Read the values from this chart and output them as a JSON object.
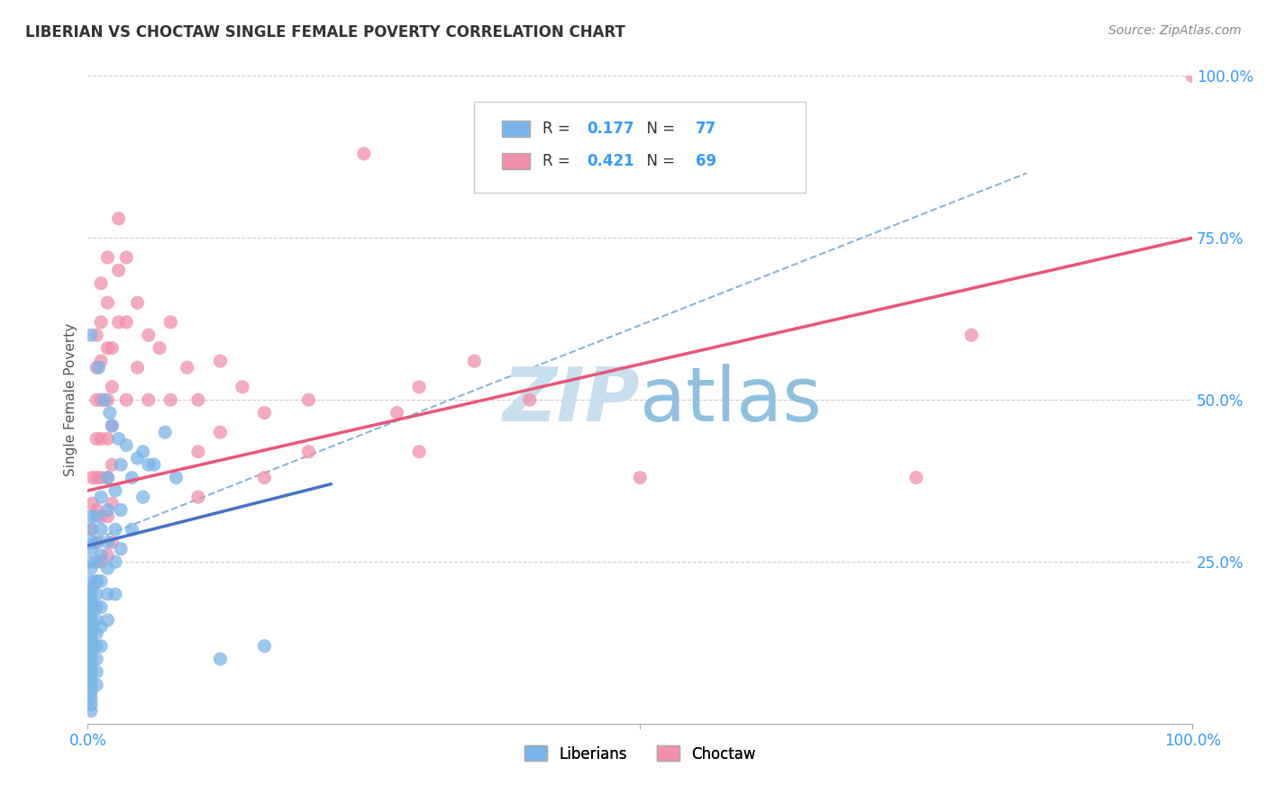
{
  "title": "LIBERIAN VS CHOCTAW SINGLE FEMALE POVERTY CORRELATION CHART",
  "source": "Source: ZipAtlas.com",
  "ylabel": "Single Female Poverty",
  "xlim": [
    0,
    1.0
  ],
  "ylim": [
    0,
    1.0
  ],
  "liberian_color": "#7ab4e8",
  "choctaw_color": "#f28faa",
  "liberian_line_color": "#4472c4",
  "choctaw_line_color": "#e8567a",
  "dashed_line_color": "#8ab4d8",
  "watermark_color": "#c8dff0",
  "background_color": "#ffffff",
  "grid_color": "#cccccc",
  "tick_color": "#3399ff",
  "title_color": "#333333",
  "source_color": "#888888",
  "ylabel_color": "#555555",
  "liberian_scatter": [
    [
      0.003,
      0.32
    ],
    [
      0.003,
      0.3
    ],
    [
      0.003,
      0.28
    ],
    [
      0.003,
      0.27
    ],
    [
      0.003,
      0.25
    ],
    [
      0.003,
      0.24
    ],
    [
      0.003,
      0.22
    ],
    [
      0.003,
      0.21
    ],
    [
      0.003,
      0.2
    ],
    [
      0.003,
      0.19
    ],
    [
      0.003,
      0.18
    ],
    [
      0.003,
      0.17
    ],
    [
      0.003,
      0.16
    ],
    [
      0.003,
      0.15
    ],
    [
      0.003,
      0.14
    ],
    [
      0.003,
      0.13
    ],
    [
      0.003,
      0.12
    ],
    [
      0.003,
      0.11
    ],
    [
      0.003,
      0.1
    ],
    [
      0.003,
      0.09
    ],
    [
      0.003,
      0.08
    ],
    [
      0.003,
      0.07
    ],
    [
      0.003,
      0.06
    ],
    [
      0.003,
      0.05
    ],
    [
      0.003,
      0.04
    ],
    [
      0.003,
      0.03
    ],
    [
      0.003,
      0.02
    ],
    [
      0.008,
      0.32
    ],
    [
      0.008,
      0.28
    ],
    [
      0.008,
      0.25
    ],
    [
      0.008,
      0.22
    ],
    [
      0.008,
      0.2
    ],
    [
      0.008,
      0.18
    ],
    [
      0.008,
      0.16
    ],
    [
      0.008,
      0.14
    ],
    [
      0.008,
      0.12
    ],
    [
      0.008,
      0.1
    ],
    [
      0.008,
      0.08
    ],
    [
      0.008,
      0.06
    ],
    [
      0.012,
      0.35
    ],
    [
      0.012,
      0.3
    ],
    [
      0.012,
      0.26
    ],
    [
      0.012,
      0.22
    ],
    [
      0.012,
      0.18
    ],
    [
      0.012,
      0.15
    ],
    [
      0.012,
      0.12
    ],
    [
      0.018,
      0.38
    ],
    [
      0.018,
      0.33
    ],
    [
      0.018,
      0.28
    ],
    [
      0.018,
      0.24
    ],
    [
      0.018,
      0.2
    ],
    [
      0.018,
      0.16
    ],
    [
      0.025,
      0.36
    ],
    [
      0.025,
      0.3
    ],
    [
      0.025,
      0.25
    ],
    [
      0.025,
      0.2
    ],
    [
      0.03,
      0.4
    ],
    [
      0.03,
      0.33
    ],
    [
      0.03,
      0.27
    ],
    [
      0.04,
      0.38
    ],
    [
      0.04,
      0.3
    ],
    [
      0.05,
      0.42
    ],
    [
      0.05,
      0.35
    ],
    [
      0.06,
      0.4
    ],
    [
      0.07,
      0.45
    ],
    [
      0.08,
      0.38
    ],
    [
      0.01,
      0.55
    ],
    [
      0.015,
      0.5
    ],
    [
      0.02,
      0.48
    ],
    [
      0.022,
      0.46
    ],
    [
      0.028,
      0.44
    ],
    [
      0.035,
      0.43
    ],
    [
      0.045,
      0.41
    ],
    [
      0.055,
      0.4
    ],
    [
      0.12,
      0.1
    ],
    [
      0.16,
      0.12
    ],
    [
      0.003,
      0.6
    ]
  ],
  "choctaw_scatter": [
    [
      0.004,
      0.38
    ],
    [
      0.004,
      0.34
    ],
    [
      0.004,
      0.3
    ],
    [
      0.008,
      0.6
    ],
    [
      0.008,
      0.55
    ],
    [
      0.008,
      0.5
    ],
    [
      0.008,
      0.44
    ],
    [
      0.008,
      0.38
    ],
    [
      0.008,
      0.33
    ],
    [
      0.008,
      0.28
    ],
    [
      0.008,
      0.22
    ],
    [
      0.012,
      0.68
    ],
    [
      0.012,
      0.62
    ],
    [
      0.012,
      0.56
    ],
    [
      0.012,
      0.5
    ],
    [
      0.012,
      0.44
    ],
    [
      0.012,
      0.38
    ],
    [
      0.012,
      0.32
    ],
    [
      0.012,
      0.25
    ],
    [
      0.018,
      0.72
    ],
    [
      0.018,
      0.65
    ],
    [
      0.018,
      0.58
    ],
    [
      0.018,
      0.5
    ],
    [
      0.018,
      0.44
    ],
    [
      0.018,
      0.38
    ],
    [
      0.018,
      0.32
    ],
    [
      0.018,
      0.26
    ],
    [
      0.022,
      0.58
    ],
    [
      0.022,
      0.52
    ],
    [
      0.022,
      0.46
    ],
    [
      0.022,
      0.4
    ],
    [
      0.022,
      0.34
    ],
    [
      0.022,
      0.28
    ],
    [
      0.028,
      0.78
    ],
    [
      0.028,
      0.7
    ],
    [
      0.028,
      0.62
    ],
    [
      0.035,
      0.72
    ],
    [
      0.035,
      0.62
    ],
    [
      0.035,
      0.5
    ],
    [
      0.045,
      0.65
    ],
    [
      0.045,
      0.55
    ],
    [
      0.055,
      0.6
    ],
    [
      0.055,
      0.5
    ],
    [
      0.065,
      0.58
    ],
    [
      0.075,
      0.62
    ],
    [
      0.075,
      0.5
    ],
    [
      0.09,
      0.55
    ],
    [
      0.1,
      0.5
    ],
    [
      0.1,
      0.42
    ],
    [
      0.1,
      0.35
    ],
    [
      0.12,
      0.56
    ],
    [
      0.12,
      0.45
    ],
    [
      0.14,
      0.52
    ],
    [
      0.16,
      0.48
    ],
    [
      0.16,
      0.38
    ],
    [
      0.2,
      0.5
    ],
    [
      0.2,
      0.42
    ],
    [
      0.25,
      0.88
    ],
    [
      0.28,
      0.48
    ],
    [
      0.3,
      0.52
    ],
    [
      0.3,
      0.42
    ],
    [
      0.35,
      0.56
    ],
    [
      0.4,
      0.5
    ],
    [
      0.5,
      0.38
    ],
    [
      0.75,
      0.38
    ],
    [
      0.8,
      0.6
    ],
    [
      1.0,
      1.0
    ]
  ],
  "lib_line": [
    [
      0.0,
      0.275
    ],
    [
      0.22,
      0.37
    ]
  ],
  "cho_line": [
    [
      0.0,
      0.36
    ],
    [
      1.0,
      0.75
    ]
  ],
  "dash_line": [
    [
      0.0,
      0.28
    ],
    [
      0.85,
      0.85
    ]
  ]
}
